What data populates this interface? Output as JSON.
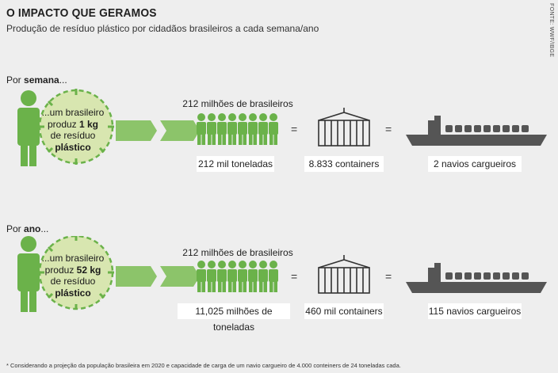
{
  "header": {
    "title": "O IMPACTO QUE GERAMOS",
    "subtitle": "Produção de resíduo plástico por cidadãos brasileiros a cada semana/ano",
    "source": "FONTE: WWF/IBGE"
  },
  "sections": [
    {
      "label_prefix": "Por ",
      "label_bold": "semana",
      "label_suffix": "...",
      "clock_line1": "...um brasileiro",
      "clock_line2_pre": "produz ",
      "clock_amount": "1 kg",
      "clock_line3": "de resíduo",
      "clock_line4": "plástico",
      "people_label": "212 milhões de brasileiros",
      "equals": "=",
      "tons": "212 mil toneladas",
      "containers": "8.833 containers",
      "ships": "2 navios cargueiros"
    },
    {
      "label_prefix": "Por ",
      "label_bold": "ano",
      "label_suffix": "...",
      "clock_line1": "...um brasileiro",
      "clock_line2_pre": "produz ",
      "clock_amount": "52 kg",
      "clock_line3": "de resíduo",
      "clock_line4": "plástico",
      "people_label": "212 milhões de brasileiros",
      "equals": "=",
      "tons": "11,025 milhões de toneladas",
      "containers": "460 mil containers",
      "ships": "115 navios cargueiros"
    }
  ],
  "footnote": "* Considerando a projeção da população brasileira em 2020 e capacidade de carga de um navio cargueiro de 4.000 conteiners de 24 toneladas cada.",
  "colors": {
    "green_dark": "#6bb24a",
    "green_light": "#d8e6b0",
    "gray_ship": "#555555",
    "container_stroke": "#333333"
  }
}
